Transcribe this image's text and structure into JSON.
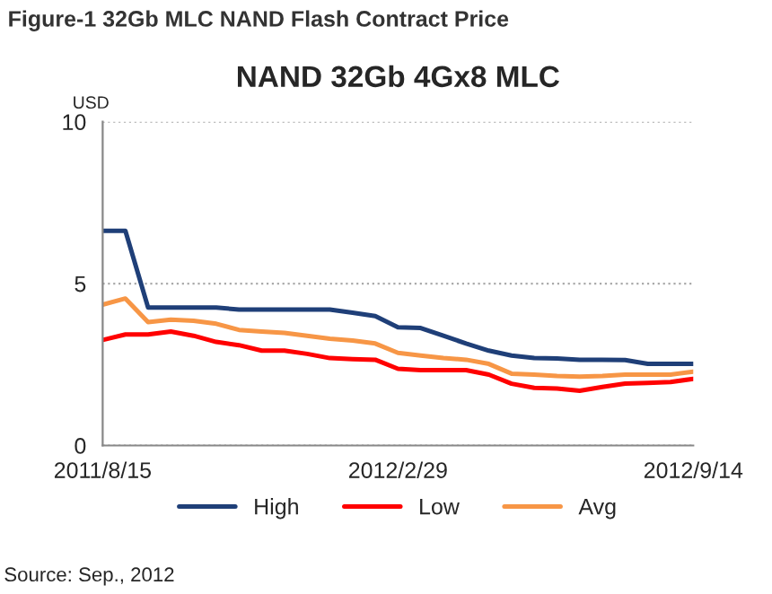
{
  "chart_data": {
    "type": "line",
    "title": "Figure-1 32Gb MLC NAND Flash Contract Price",
    "subtitle": "NAND 32Gb 4Gx8 MLC",
    "ylabel": "USD",
    "categories": [
      "2011/8/15",
      null,
      null,
      null,
      null,
      null,
      null,
      null,
      null,
      null,
      null,
      null,
      null,
      "2012/2/29",
      null,
      null,
      null,
      null,
      null,
      null,
      null,
      null,
      null,
      null,
      null,
      null,
      "2012/9/14"
    ],
    "series": [
      {
        "name": "High",
        "color": "#1f3f78",
        "values": [
          6.63,
          6.63,
          4.26,
          4.26,
          4.26,
          4.26,
          4.2,
          4.2,
          4.2,
          4.2,
          4.2,
          4.1,
          4.0,
          3.65,
          3.63,
          3.39,
          3.15,
          2.93,
          2.78,
          2.7,
          2.69,
          2.65,
          2.65,
          2.64,
          2.52,
          2.52,
          2.52
        ]
      },
      {
        "name": "Low",
        "color": "#ff0000",
        "values": [
          3.26,
          3.43,
          3.43,
          3.52,
          3.39,
          3.2,
          3.1,
          2.93,
          2.93,
          2.83,
          2.7,
          2.67,
          2.65,
          2.37,
          2.33,
          2.33,
          2.33,
          2.19,
          1.91,
          1.78,
          1.76,
          1.69,
          1.81,
          1.91,
          1.93,
          1.96,
          2.06
        ]
      },
      {
        "name": "Avg",
        "color": "#f79646",
        "values": [
          4.35,
          4.54,
          3.81,
          3.89,
          3.85,
          3.76,
          3.57,
          3.52,
          3.48,
          3.39,
          3.3,
          3.24,
          3.15,
          2.86,
          2.78,
          2.7,
          2.65,
          2.52,
          2.22,
          2.19,
          2.15,
          2.13,
          2.15,
          2.19,
          2.19,
          2.19,
          2.28
        ]
      }
    ],
    "ylim": [
      0,
      10
    ],
    "yticks": [
      0,
      5,
      10
    ],
    "grid": "y",
    "legend": "bottom",
    "marker": "none",
    "line_style": "solid",
    "annotations": [
      "Source: Sep., 2012"
    ]
  }
}
